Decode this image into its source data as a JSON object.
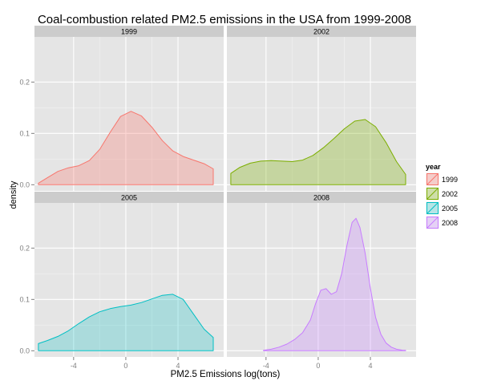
{
  "chart_data": {
    "type": "area",
    "title": "Coal-combustion related PM2.5 emissions in the USA from 1999-2008",
    "xlabel": "PM2.5 Emissions log(tons)",
    "ylabel": "density",
    "xlim": [
      -7,
      7.5
    ],
    "ylim": [
      -0.012,
      0.288
    ],
    "x_ticks": [
      -4,
      0,
      4
    ],
    "y_ticks": [
      0.0,
      0.1,
      0.2
    ],
    "grid": true,
    "legend": {
      "title": "year",
      "position": "right",
      "entries": [
        "1999",
        "2002",
        "2005",
        "2008"
      ]
    },
    "facets": [
      "1999",
      "2002",
      "2005",
      "2008"
    ],
    "series": [
      {
        "name": "1999",
        "color": "#F8766D",
        "fill": "rgba(248,118,109,0.30)",
        "x": [
          -6.7,
          -6,
          -5.2,
          -4.4,
          -3.6,
          -2.8,
          -2,
          -1.2,
          -0.4,
          0.4,
          1.2,
          2,
          2.8,
          3.6,
          4.4,
          5.2,
          6,
          6.7
        ],
        "y": [
          0.003,
          0.014,
          0.026,
          0.033,
          0.037,
          0.047,
          0.069,
          0.102,
          0.133,
          0.143,
          0.134,
          0.112,
          0.086,
          0.066,
          0.055,
          0.048,
          0.041,
          0.031
        ]
      },
      {
        "name": "2002",
        "color": "#7CAE00",
        "fill": "rgba(124,174,0,0.30)",
        "x": [
          -6.7,
          -6,
          -5.2,
          -4.4,
          -3.6,
          -2.8,
          -2,
          -1.2,
          -0.4,
          0.4,
          1.2,
          2,
          2.8,
          3.6,
          4.4,
          5.2,
          6,
          6.7
        ],
        "y": [
          0.022,
          0.034,
          0.042,
          0.046,
          0.047,
          0.046,
          0.045,
          0.048,
          0.057,
          0.072,
          0.09,
          0.109,
          0.124,
          0.127,
          0.113,
          0.082,
          0.045,
          0.02
        ]
      },
      {
        "name": "2005",
        "color": "#00BFC4",
        "fill": "rgba(0,191,196,0.25)",
        "x": [
          -6.7,
          -6,
          -5.2,
          -4.4,
          -3.6,
          -2.8,
          -2,
          -1.2,
          -0.4,
          0.4,
          1.2,
          2,
          2.8,
          3.6,
          4.4,
          5.2,
          6,
          6.7
        ],
        "y": [
          0.014,
          0.02,
          0.028,
          0.039,
          0.053,
          0.066,
          0.076,
          0.082,
          0.086,
          0.089,
          0.094,
          0.101,
          0.108,
          0.11,
          0.1,
          0.071,
          0.042,
          0.026
        ]
      },
      {
        "name": "2008",
        "color": "#C77CFF",
        "fill": "rgba(199,124,255,0.28)",
        "x": [
          -4.2,
          -3.6,
          -3,
          -2.4,
          -1.8,
          -1.2,
          -0.6,
          -0.2,
          0.2,
          0.6,
          1,
          1.4,
          1.8,
          2.2,
          2.6,
          2.9,
          3.2,
          3.6,
          4,
          4.4,
          4.8,
          5.2,
          5.6,
          6,
          6.5,
          6.7
        ],
        "y": [
          0.001,
          0.003,
          0.007,
          0.013,
          0.022,
          0.035,
          0.06,
          0.092,
          0.118,
          0.121,
          0.11,
          0.115,
          0.15,
          0.205,
          0.25,
          0.258,
          0.24,
          0.19,
          0.122,
          0.065,
          0.032,
          0.015,
          0.007,
          0.003,
          0.001,
          0.001
        ]
      }
    ]
  }
}
